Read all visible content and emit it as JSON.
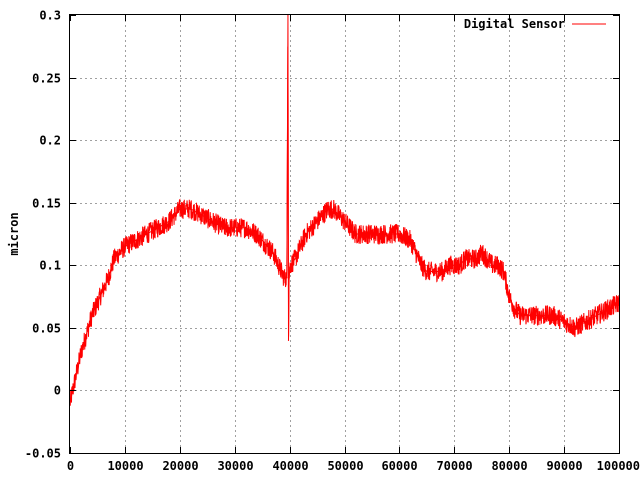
{
  "chart_data": {
    "type": "line",
    "title": "",
    "xlabel": "",
    "ylabel": "micron",
    "xlim": [
      0,
      100000
    ],
    "ylim": [
      -0.05,
      0.3
    ],
    "grid": true,
    "legend_position": "top-right",
    "x_ticks": [
      "0",
      "10000",
      "20000",
      "30000",
      "40000",
      "50000",
      "60000",
      "70000",
      "80000",
      "90000",
      "100000"
    ],
    "y_ticks": [
      "-0.05",
      "0",
      "0.05",
      "0.1",
      "0.15",
      "0.2",
      "0.25",
      "0.3"
    ],
    "series": [
      {
        "name": "Digital Sensor",
        "color": "#ff0000",
        "x": [
          0,
          1000,
          2000,
          3000,
          4000,
          5000,
          6000,
          7000,
          8000,
          9000,
          10000,
          12000,
          14000,
          16000,
          18000,
          20000,
          22000,
          24000,
          26000,
          28000,
          30000,
          32000,
          34000,
          35000,
          36000,
          37000,
          38000,
          39000,
          39500,
          39700,
          39800,
          39900,
          40100,
          41000,
          42000,
          43000,
          44000,
          45000,
          46000,
          47000,
          48000,
          49000,
          50000,
          51000,
          52000,
          53000,
          54000,
          56000,
          58000,
          60000,
          62000,
          63000,
          64000,
          65000,
          66000,
          67000,
          68000,
          69000,
          70000,
          71000,
          72000,
          73000,
          74000,
          75000,
          76000,
          77000,
          78000,
          79000,
          80000,
          81000,
          82000,
          84000,
          86000,
          88000,
          90000,
          92000,
          94000,
          96000,
          98000,
          100000
        ],
        "y": [
          -0.01,
          0.01,
          0.03,
          0.045,
          0.06,
          0.07,
          0.08,
          0.09,
          0.105,
          0.11,
          0.115,
          0.12,
          0.125,
          0.13,
          0.135,
          0.145,
          0.145,
          0.14,
          0.135,
          0.13,
          0.13,
          0.13,
          0.125,
          0.12,
          0.115,
          0.11,
          0.1,
          0.09,
          0.09,
          0.3,
          0.04,
          0.09,
          0.1,
          0.105,
          0.115,
          0.125,
          0.13,
          0.135,
          0.14,
          0.145,
          0.145,
          0.14,
          0.135,
          0.13,
          0.125,
          0.125,
          0.125,
          0.125,
          0.125,
          0.125,
          0.12,
          0.11,
          0.1,
          0.095,
          0.095,
          0.095,
          0.095,
          0.1,
          0.1,
          0.1,
          0.105,
          0.105,
          0.105,
          0.11,
          0.105,
          0.1,
          0.1,
          0.095,
          0.075,
          0.065,
          0.06,
          0.06,
          0.06,
          0.06,
          0.055,
          0.05,
          0.055,
          0.06,
          0.065,
          0.07
        ],
        "noise_amplitude": 0.008
      }
    ]
  }
}
